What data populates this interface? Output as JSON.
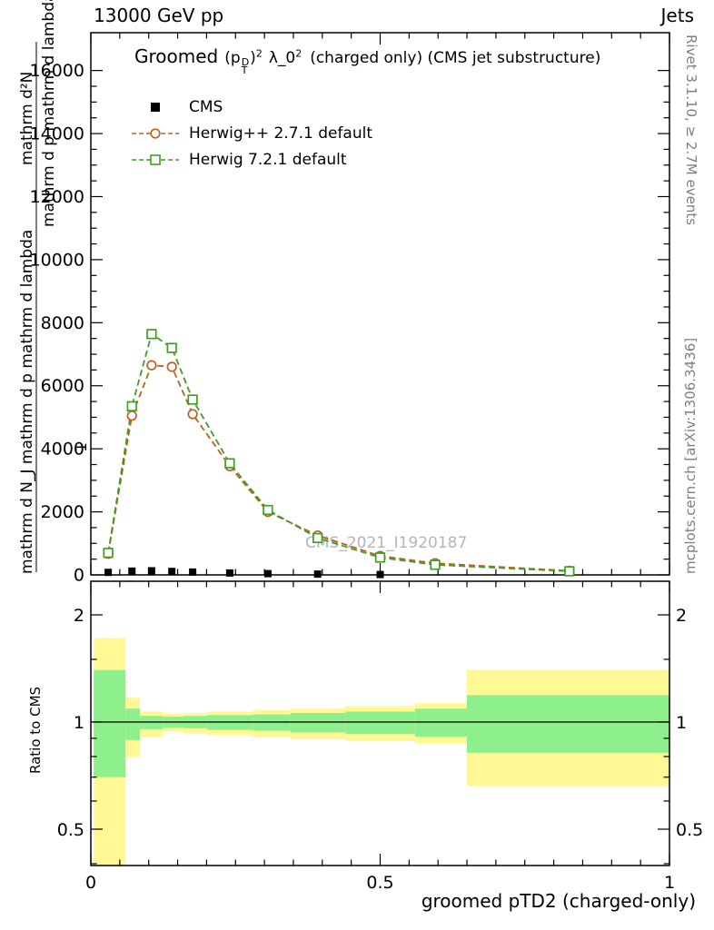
{
  "header": {
    "left": "13000 GeV pp",
    "right": "Jets"
  },
  "title": {
    "prefix": "Groomed",
    "p_open": "(p",
    "p_sup": "D",
    "p_sub": "T",
    "p_close": ")",
    "p_exp": "2",
    "lambda": "λ_0",
    "lambda_exp": "2",
    "suffix": "(charged only) (CMS jet substructure)"
  },
  "side_texts": {
    "right_top": "Rivet 3.1.10, ≥ 2.7M events",
    "right_bottom": "mcplots.cern.ch [arXiv:1306.3436]"
  },
  "watermark": "CMS_2021_I1920187",
  "ylabel": {
    "frag1": "mathrm d²N",
    "frag2": "mathrm d p mathrm d lambda",
    "frag3": "1",
    "frag4": "mathrm d N_J mathrm d p mathrm d lambda"
  },
  "chart_data": {
    "type": "line",
    "title": "Groomed (p_T^D)^2 λ_0^2 (charged only) (CMS jet substructure)",
    "xlabel": "groomed pTD2 (charged-only)",
    "ylabel": "1/mathrm d N_J mathrm d²N / mathrm d p mathrm d lambda",
    "xlim": [
      0,
      1
    ],
    "ylim": [
      0,
      17200
    ],
    "xticks": [
      0,
      0.5,
      1
    ],
    "xtick_labels": [
      "0",
      "0.5",
      "1"
    ],
    "yticks": [
      0,
      2000,
      4000,
      6000,
      8000,
      10000,
      12000,
      14000,
      16000
    ],
    "grid": false,
    "legend_position": "top-left",
    "series": [
      {
        "name": "CMS",
        "color": "#000000",
        "marker": "filled-square",
        "line": "none",
        "x": [
          0.03,
          0.071,
          0.105,
          0.14,
          0.176,
          0.24,
          0.306,
          0.392,
          0.5
        ],
        "y": [
          80,
          120,
          130,
          110,
          90,
          60,
          40,
          25,
          12
        ]
      },
      {
        "name": "Herwig++ 2.7.1 default",
        "color": "#c25e1e",
        "marker": "open-circle",
        "line": "dashed",
        "x": [
          0.03,
          0.071,
          0.105,
          0.14,
          0.176,
          0.24,
          0.306,
          0.392,
          0.5,
          0.595,
          0.827
        ],
        "y": [
          670,
          5050,
          6650,
          6600,
          5100,
          3450,
          2000,
          1250,
          600,
          370,
          130
        ]
      },
      {
        "name": "Herwig 7.2.1 default",
        "color": "#3f9e23",
        "marker": "open-square",
        "line": "dashed",
        "x": [
          0.03,
          0.071,
          0.105,
          0.14,
          0.176,
          0.24,
          0.306,
          0.392,
          0.5,
          0.595,
          0.827
        ],
        "y": [
          700,
          5350,
          7640,
          7200,
          5560,
          3540,
          2060,
          1170,
          550,
          320,
          115
        ]
      }
    ],
    "ratio": {
      "ylabel": "Ratio to CMS",
      "scale": "log",
      "ylim": [
        0.395,
        2.49
      ],
      "yticks": [
        0.5,
        1,
        2
      ],
      "ytick_labels": [
        "0.5",
        "1",
        "2"
      ],
      "yticks_minor": [
        0.4,
        0.6,
        0.7,
        0.8,
        0.9,
        1.5
      ],
      "unity_line": 1,
      "band_colors": {
        "yellow": "#fff894",
        "green": "#8df08d"
      },
      "bands": [
        {
          "x0": 0.005,
          "x1": 0.06,
          "yellow": [
            0.33,
            1.72
          ],
          "green": [
            0.7,
            1.4
          ]
        },
        {
          "x0": 0.06,
          "x1": 0.085,
          "yellow": [
            0.8,
            1.17
          ],
          "green": [
            0.89,
            1.09
          ]
        },
        {
          "x0": 0.085,
          "x1": 0.125,
          "yellow": [
            0.91,
            1.07
          ],
          "green": [
            0.955,
            1.04
          ]
        },
        {
          "x0": 0.125,
          "x1": 0.16,
          "yellow": [
            0.94,
            1.055
          ],
          "green": [
            0.965,
            1.035
          ]
        },
        {
          "x0": 0.16,
          "x1": 0.2,
          "yellow": [
            0.93,
            1.06
          ],
          "green": [
            0.96,
            1.04
          ]
        },
        {
          "x0": 0.2,
          "x1": 0.28,
          "yellow": [
            0.92,
            1.07
          ],
          "green": [
            0.95,
            1.045
          ]
        },
        {
          "x0": 0.28,
          "x1": 0.345,
          "yellow": [
            0.91,
            1.08
          ],
          "green": [
            0.945,
            1.05
          ]
        },
        {
          "x0": 0.345,
          "x1": 0.44,
          "yellow": [
            0.895,
            1.09
          ],
          "green": [
            0.935,
            1.06
          ]
        },
        {
          "x0": 0.44,
          "x1": 0.56,
          "yellow": [
            0.885,
            1.11
          ],
          "green": [
            0.925,
            1.07
          ]
        },
        {
          "x0": 0.56,
          "x1": 0.65,
          "yellow": [
            0.87,
            1.13
          ],
          "green": [
            0.91,
            1.09
          ]
        },
        {
          "x0": 0.65,
          "x1": 1.0,
          "yellow": [
            0.66,
            1.4
          ],
          "green": [
            0.82,
            1.19
          ]
        }
      ]
    }
  }
}
